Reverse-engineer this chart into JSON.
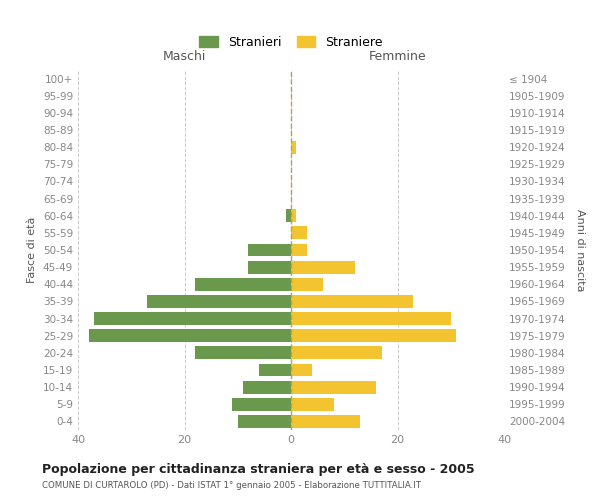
{
  "age_groups": [
    "0-4",
    "5-9",
    "10-14",
    "15-19",
    "20-24",
    "25-29",
    "30-34",
    "35-39",
    "40-44",
    "45-49",
    "50-54",
    "55-59",
    "60-64",
    "65-69",
    "70-74",
    "75-79",
    "80-84",
    "85-89",
    "90-94",
    "95-99",
    "100+"
  ],
  "birth_years": [
    "2000-2004",
    "1995-1999",
    "1990-1994",
    "1985-1989",
    "1980-1984",
    "1975-1979",
    "1970-1974",
    "1965-1969",
    "1960-1964",
    "1955-1959",
    "1950-1954",
    "1945-1949",
    "1940-1944",
    "1935-1939",
    "1930-1934",
    "1925-1929",
    "1920-1924",
    "1915-1919",
    "1910-1914",
    "1905-1909",
    "≤ 1904"
  ],
  "maschi": [
    10,
    11,
    9,
    6,
    18,
    38,
    37,
    27,
    18,
    8,
    8,
    0,
    1,
    0,
    0,
    0,
    0,
    0,
    0,
    0,
    0
  ],
  "femmine": [
    13,
    8,
    16,
    4,
    17,
    31,
    30,
    23,
    6,
    12,
    3,
    3,
    1,
    0,
    0,
    0,
    1,
    0,
    0,
    0,
    0
  ],
  "maschi_color": "#6a994e",
  "femmine_color": "#f4c430",
  "background_color": "#ffffff",
  "grid_color": "#cccccc",
  "title": "Popolazione per cittadinanza straniera per età e sesso - 2005",
  "subtitle": "COMUNE DI CURTAROLO (PD) - Dati ISTAT 1° gennaio 2005 - Elaborazione TUTTITALIA.IT",
  "label_maschi": "Maschi",
  "label_femmine": "Femmine",
  "ylabel_left": "Fasce di età",
  "ylabel_right": "Anni di nascita",
  "xlim": 40,
  "legend_maschi": "Stranieri",
  "legend_femmine": "Straniere"
}
